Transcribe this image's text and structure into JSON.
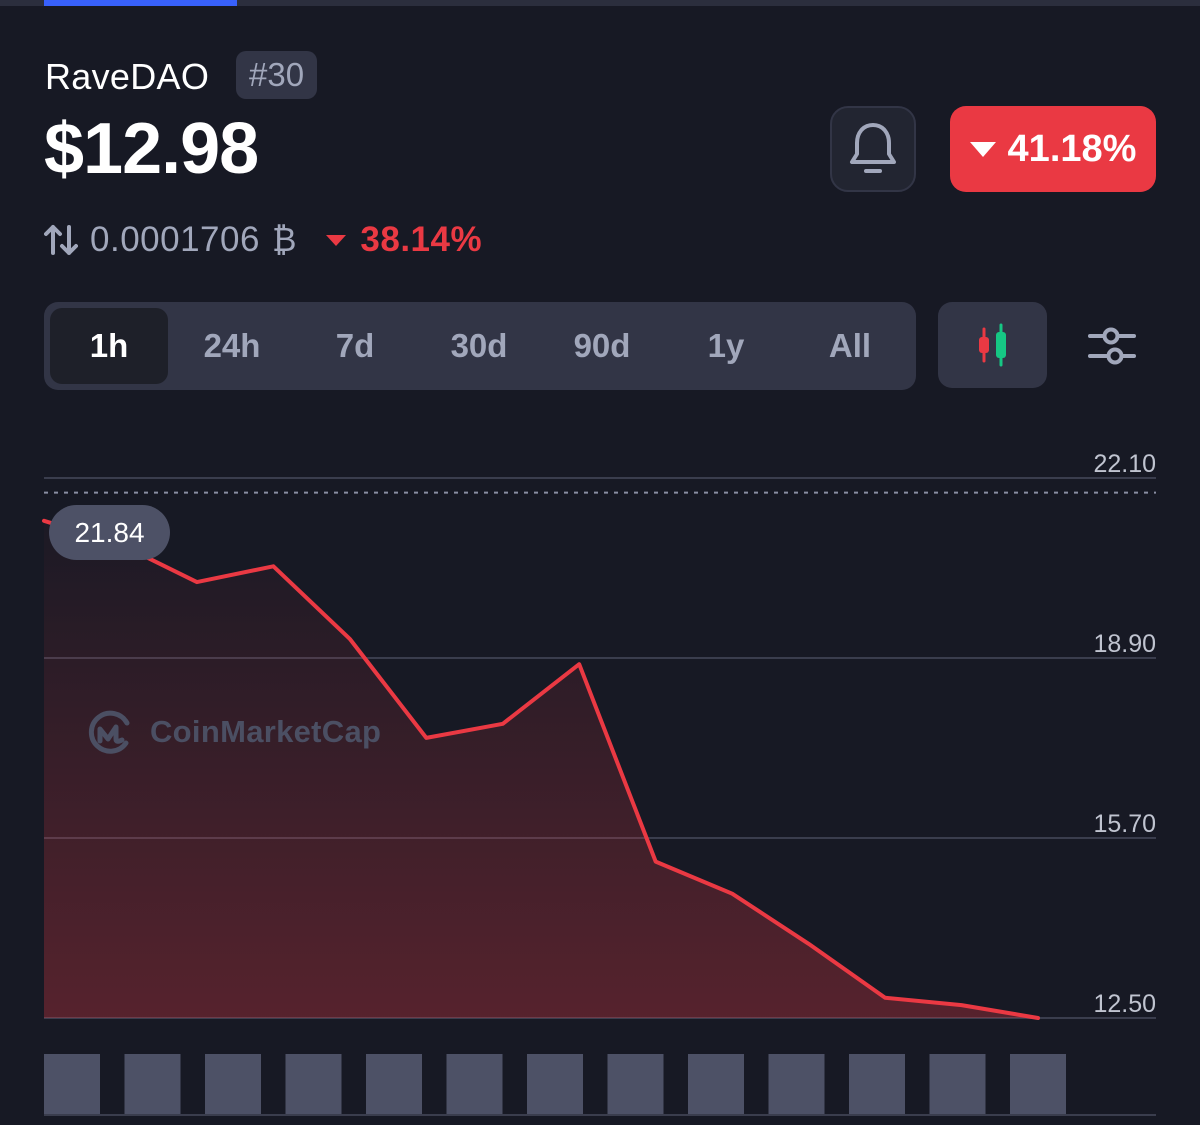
{
  "coin": {
    "name": "RaveDAO",
    "rank": "#30",
    "price": "$12.98",
    "change_pct": "41.18%",
    "change_direction": "down",
    "btc_price": "0.0001706",
    "btc_symbol": "₿",
    "btc_change_pct": "38.14%"
  },
  "colors": {
    "background": "#171924",
    "negative": "#ea3943",
    "positive": "#16c784",
    "accent": "#3861fb"
  },
  "timeframes": {
    "selected": "1h",
    "items": [
      "1h",
      "24h",
      "7d",
      "30d",
      "90d",
      "1y",
      "All"
    ]
  },
  "icons": {
    "alert": "bell-icon",
    "chart_mode": "candlestick-icon",
    "settings": "sliders-icon",
    "swap": "swap-arrows-icon",
    "watermark_logo": "coinmarketcap-logo"
  },
  "watermark": "CoinMarketCap",
  "tooltip": {
    "value": "21.84"
  },
  "chart_data": {
    "type": "area",
    "y_ticks": [
      "22.10",
      "18.90",
      "15.70",
      "12.50"
    ],
    "ylim": [
      12.5,
      22.1
    ],
    "grid": true,
    "reference_line": 21.84,
    "series": [
      {
        "values": [
          21.34,
          20.92,
          20.25,
          20.53,
          19.24,
          17.48,
          17.73,
          18.79,
          15.28,
          14.71,
          13.82,
          12.86,
          12.73,
          12.5
        ]
      }
    ],
    "volume": [
      1,
      1,
      1,
      1,
      1,
      1,
      1,
      1,
      1,
      1,
      1,
      1,
      1
    ]
  }
}
